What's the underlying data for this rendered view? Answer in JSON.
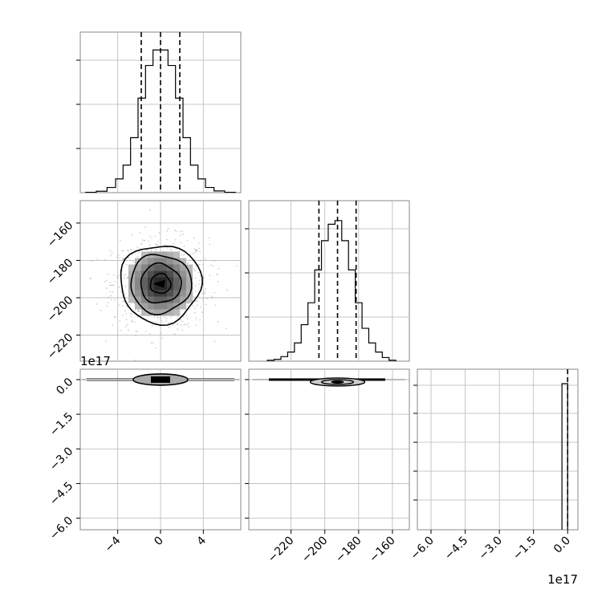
{
  "chart_data": [
    {
      "type": "histogram",
      "panel": "param0-marginal",
      "x": [
        -7.0,
        -6.0,
        -5.0,
        -4.2,
        -3.5,
        -2.8,
        -2.1,
        -1.4,
        -0.7,
        0.0,
        0.7,
        1.4,
        2.1,
        2.8,
        3.5,
        4.2,
        5.0,
        6.0,
        7.0
      ],
      "counts": [
        0.2,
        0.8,
        3,
        8,
        16,
        32,
        55,
        74,
        83,
        83,
        74,
        55,
        32,
        16,
        8,
        3,
        1,
        0.2
      ],
      "xlim": [
        -7.5,
        7.5
      ],
      "xticks": [
        "−4",
        "0",
        "4"
      ],
      "quantiles": [
        -1.8,
        0.0,
        1.8
      ],
      "grid": true
    },
    {
      "type": "histogram",
      "panel": "param1-marginal",
      "x": [
        -234,
        -230,
        -226,
        -222,
        -218,
        -214,
        -210,
        -206,
        -202,
        -198,
        -194,
        -190,
        -186,
        -182,
        -178,
        -174,
        -170,
        -166,
        -162,
        -158
      ],
      "counts": [
        0.5,
        1,
        2.5,
        5,
        10,
        20,
        32,
        50,
        66,
        75,
        77,
        66,
        50,
        32,
        18,
        10,
        5,
        2,
        0.5
      ],
      "xlim": [
        -245,
        -150
      ],
      "xticks": [
        "−220",
        "−200",
        "−180",
        "−160"
      ],
      "quantiles": [
        -203.5,
        -192.5,
        -181.5
      ],
      "grid": true
    },
    {
      "type": "histogram",
      "panel": "param2-marginal",
      "bins": [
        [
          -0.25,
          0.0
        ]
      ],
      "counts": [
        100
      ],
      "xlim": [
        -6.6,
        0.45
      ],
      "xticks": [
        "−6.0",
        "−4.5",
        "−3.0",
        "−1.5",
        "0.0"
      ],
      "x_offset_label": "1e17",
      "quantiles": [
        0.0
      ],
      "grid": true
    },
    {
      "type": "scatter",
      "panel": "param0-vs-param1",
      "xlim": [
        -7.5,
        7.5
      ],
      "ylim": [
        -234,
        -148
      ],
      "yticks": [
        "−160",
        "−180",
        "−200",
        "−220"
      ],
      "center": [
        0.0,
        -192.5
      ],
      "sigma": [
        1.8,
        10.5
      ],
      "contours_sigma": [
        0.5,
        1.0,
        1.5,
        2.0
      ],
      "grid": true
    },
    {
      "type": "scatter",
      "panel": "param0-vs-param2",
      "xlim": [
        -7.5,
        7.5
      ],
      "ylim": [
        -6.5,
        0.45
      ],
      "yticks": [
        "0.0",
        "−1.5",
        "−3.0",
        "−4.5",
        "−6.0"
      ],
      "y_offset_label": "1e17",
      "xticks": [
        "−4",
        "0",
        "4"
      ],
      "center": [
        0.0,
        0.0
      ],
      "grid": true
    },
    {
      "type": "scatter",
      "panel": "param1-vs-param2",
      "xlim": [
        -245,
        -150
      ],
      "ylim": [
        -6.5,
        0.45
      ],
      "xticks": [
        "−220",
        "−200",
        "−180",
        "−160"
      ],
      "center": [
        -192.5,
        0.0
      ],
      "grid": true
    }
  ]
}
